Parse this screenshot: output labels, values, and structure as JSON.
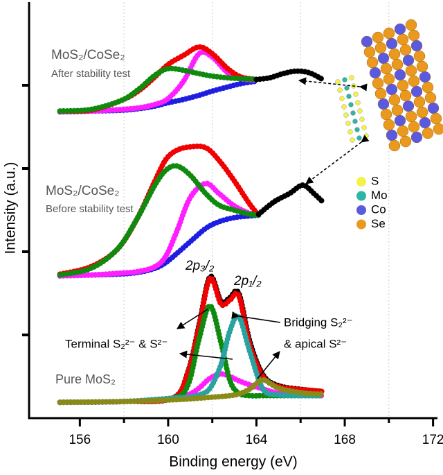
{
  "chart_data": {
    "type": "line",
    "x_label": "Binding energy (eV)",
    "y_label": "Intensity (a.u.)",
    "xlim": [
      153.7,
      172.2
    ],
    "xticks": [
      156,
      160,
      164,
      168,
      172
    ],
    "xminorticks": [
      158,
      162,
      166,
      170
    ],
    "ylim": [
      0,
      5
    ],
    "yticks": [
      1,
      2,
      3,
      4
    ],
    "grid": true,
    "annotations": [
      "MoS₂/CoSe₂",
      "After stability test",
      "MoS₂/CoSe₂",
      "Before stability test",
      "Pure MoS₂",
      "2p₃/₂",
      "2p₁/₂",
      "Terminal S₂²⁻ & S²⁻",
      "Bridging S₂²⁻",
      "& apical S²⁻"
    ],
    "structure_legend": [
      {
        "label": "S",
        "color": "#f2f24a"
      },
      {
        "label": "Mo",
        "color": "#2fb5a5"
      },
      {
        "label": "Co",
        "color": "#5a5ae0"
      },
      {
        "label": "Se",
        "color": "#e8991e"
      }
    ],
    "series": [
      {
        "color": "#1f1fe0",
        "x": [
          155.1,
          156.5,
          157.9,
          158.7,
          159.4,
          160.0,
          160.7,
          161.4,
          162.0,
          162.7,
          163.3,
          164.0
        ],
        "values": [
          3.68,
          3.69,
          3.7,
          3.72,
          3.75,
          3.79,
          3.83,
          3.88,
          3.93,
          3.98,
          4.02,
          4.05
        ]
      },
      {
        "color": "#ff1fff",
        "x": [
          155.1,
          156.5,
          157.9,
          158.7,
          159.4,
          160.0,
          160.7,
          161.4,
          162.0,
          162.7,
          163.3,
          164.0
        ],
        "values": [
          3.68,
          3.69,
          3.71,
          3.73,
          3.77,
          3.84,
          4.05,
          4.38,
          4.34,
          4.15,
          4.08,
          4.06
        ]
      },
      {
        "color": "#f00000",
        "x": [
          155.1,
          156.5,
          157.9,
          158.7,
          159.4,
          160.0,
          160.7,
          161.4,
          162.0,
          162.7,
          163.3,
          164.0
        ],
        "values": [
          3.69,
          3.7,
          3.82,
          3.94,
          4.1,
          4.25,
          4.36,
          4.46,
          4.38,
          4.2,
          4.1,
          4.07
        ]
      },
      {
        "color": "#0f8a0f",
        "x": [
          155.1,
          156.5,
          157.9,
          158.7,
          159.4,
          160.0,
          160.7,
          161.4,
          162.0,
          162.7,
          163.3,
          164.0
        ],
        "values": [
          3.69,
          3.71,
          3.82,
          3.96,
          4.12,
          4.2,
          4.18,
          4.14,
          4.11,
          4.09,
          4.08,
          4.07
        ]
      },
      {
        "color": "#000000",
        "x": [
          164.0,
          164.6,
          165.2,
          165.8,
          166.4,
          167.0
        ],
        "values": [
          4.07,
          4.09,
          4.14,
          4.17,
          4.15,
          4.07
        ]
      },
      {
        "color": "#1f1fe0",
        "x": [
          155.1,
          156.5,
          157.7,
          158.6,
          159.4,
          159.9,
          160.4,
          161.0,
          161.7,
          162.3,
          163.0,
          163.7,
          164.1
        ],
        "values": [
          1.71,
          1.72,
          1.73,
          1.75,
          1.8,
          1.87,
          1.98,
          2.12,
          2.28,
          2.36,
          2.41,
          2.43,
          2.44
        ]
      },
      {
        "color": "#ff1fff",
        "x": [
          155.1,
          156.5,
          157.7,
          158.6,
          159.4,
          159.9,
          160.4,
          161.0,
          161.7,
          162.3,
          163.0,
          163.7,
          164.1
        ],
        "values": [
          1.71,
          1.72,
          1.74,
          1.76,
          1.82,
          1.95,
          2.25,
          2.65,
          2.82,
          2.7,
          2.55,
          2.46,
          2.44
        ]
      },
      {
        "color": "#f00000",
        "x": [
          155.1,
          156.5,
          157.7,
          158.6,
          159.4,
          159.9,
          160.4,
          161.0,
          161.7,
          162.3,
          163.0,
          163.7,
          164.1
        ],
        "values": [
          1.73,
          1.82,
          2.03,
          2.4,
          2.85,
          3.11,
          3.22,
          3.26,
          3.25,
          3.1,
          2.85,
          2.57,
          2.44
        ]
      },
      {
        "color": "#0f8a0f",
        "x": [
          155.1,
          156.5,
          157.7,
          158.6,
          159.4,
          159.9,
          160.4,
          161.0,
          161.7,
          162.3,
          163.0,
          163.7,
          164.1
        ],
        "values": [
          1.72,
          1.8,
          2.03,
          2.4,
          2.8,
          2.98,
          3.03,
          2.92,
          2.7,
          2.56,
          2.5,
          2.45,
          2.44
        ]
      },
      {
        "color": "#000000",
        "x": [
          164.1,
          164.8,
          165.5,
          166.1,
          166.6,
          167.0
        ],
        "values": [
          2.45,
          2.6,
          2.7,
          2.8,
          2.7,
          2.6
        ]
      },
      {
        "color": "#000000",
        "x": [
          155.1,
          158.0,
          160.2,
          160.9,
          161.4,
          161.9,
          162.4,
          162.8,
          163.2,
          163.7,
          164.3,
          165.0,
          166.2,
          167.0
        ],
        "values": [
          0.19,
          0.2,
          0.24,
          0.56,
          1.12,
          1.7,
          1.4,
          1.45,
          1.5,
          0.92,
          0.52,
          0.39,
          0.34,
          0.32
        ]
      },
      {
        "color": "#f00000",
        "x": [
          155.1,
          158.0,
          160.2,
          160.9,
          161.4,
          161.9,
          162.4,
          162.8,
          163.2,
          163.7,
          164.3,
          165.0,
          166.2,
          167.0
        ],
        "values": [
          0.19,
          0.2,
          0.24,
          0.55,
          1.1,
          1.68,
          1.37,
          1.42,
          1.47,
          0.88,
          0.5,
          0.38,
          0.34,
          0.32
        ]
      },
      {
        "color": "#ff1fff",
        "x": [
          155.1,
          158.0,
          160.2,
          160.9,
          161.4,
          161.9,
          162.4,
          162.8,
          163.2,
          163.7,
          164.3,
          165.0,
          166.2,
          167.0
        ],
        "values": [
          0.19,
          0.2,
          0.24,
          0.28,
          0.36,
          0.48,
          0.53,
          0.5,
          0.45,
          0.4,
          0.35,
          0.3,
          0.28,
          0.27
        ]
      },
      {
        "color": "#0f8a0f",
        "x": [
          155.1,
          158.0,
          160.2,
          160.9,
          161.4,
          161.9,
          162.4,
          162.8,
          163.2,
          163.7,
          164.3,
          165.0,
          166.2,
          167.0
        ],
        "values": [
          0.19,
          0.2,
          0.24,
          0.4,
          0.95,
          1.35,
          0.9,
          0.45,
          0.3,
          0.27,
          0.27,
          0.27,
          0.27,
          0.27
        ]
      },
      {
        "color": "#2aa3a0",
        "x": [
          155.1,
          158.0,
          160.2,
          160.9,
          161.4,
          161.9,
          162.4,
          162.8,
          163.2,
          163.7,
          164.3,
          165.0,
          166.2,
          167.0
        ],
        "values": [
          0.19,
          0.2,
          0.24,
          0.25,
          0.28,
          0.36,
          0.65,
          1.05,
          1.22,
          0.8,
          0.35,
          0.28,
          0.27,
          0.27
        ]
      },
      {
        "color": "#8a8a1a",
        "x": [
          155.1,
          158.0,
          160.2,
          160.9,
          161.4,
          161.9,
          162.4,
          162.8,
          163.2,
          163.7,
          164.3,
          165.0,
          166.2,
          167.0
        ],
        "values": [
          0.19,
          0.2,
          0.22,
          0.23,
          0.24,
          0.25,
          0.26,
          0.27,
          0.29,
          0.35,
          0.46,
          0.36,
          0.3,
          0.29
        ]
      }
    ]
  }
}
